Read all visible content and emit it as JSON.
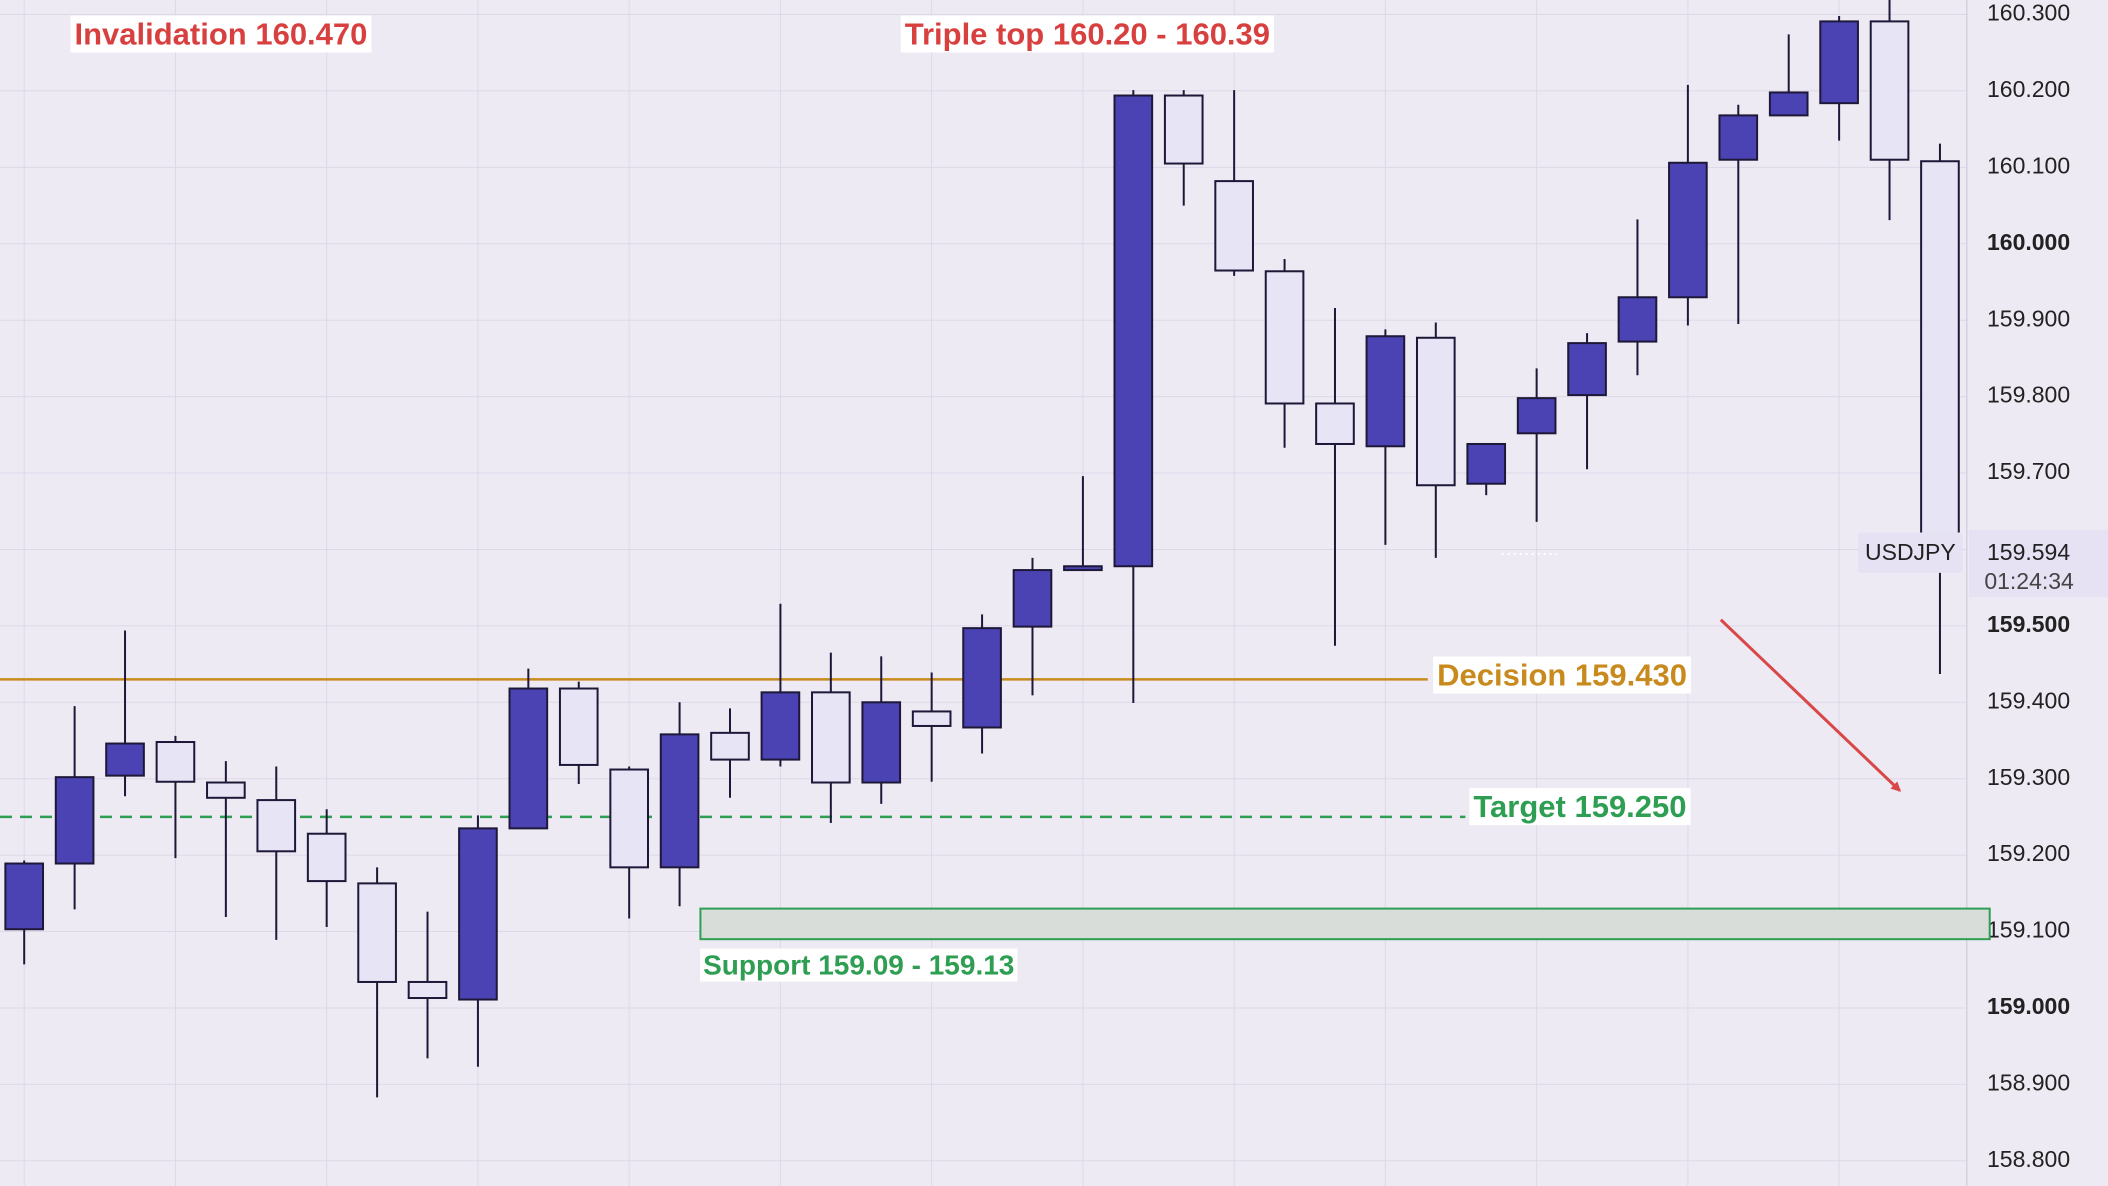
{
  "chart_data": {
    "type": "candlestick",
    "invalidation_text": "Invalidation 160.470",
    "triple_top_text": "Triple top 160.20 - 160.39",
    "open": [
      159.103,
      159.189,
      159.304,
      159.348,
      159.295,
      159.272,
      159.228,
      159.163,
      159.034,
      159.011,
      159.235,
      159.418,
      159.312,
      159.184,
      159.36,
      159.325,
      159.413,
      159.295,
      159.388,
      159.367,
      159.499,
      159.573,
      159.578,
      160.194,
      160.082,
      159.964,
      159.791,
      159.735,
      159.877,
      159.686,
      159.752,
      159.802,
      159.872,
      159.93,
      160.11,
      160.168,
      160.184,
      160.291,
      160.108
    ],
    "high": [
      159.193,
      159.395,
      159.494,
      159.356,
      159.323,
      159.316,
      159.26,
      159.184,
      159.126,
      159.252,
      159.444,
      159.427,
      159.316,
      159.4,
      159.392,
      159.529,
      159.465,
      159.46,
      159.439,
      159.515,
      159.589,
      159.696,
      160.201,
      160.201,
      160.201,
      159.98,
      159.916,
      159.888,
      159.897,
      159.738,
      159.837,
      159.883,
      160.032,
      160.208,
      160.182,
      160.274,
      160.298,
      160.319,
      160.131
    ],
    "low": [
      159.057,
      159.129,
      159.277,
      159.196,
      159.119,
      159.089,
      159.106,
      158.883,
      158.934,
      158.923,
      159.235,
      159.293,
      159.117,
      159.133,
      159.275,
      159.316,
      159.242,
      159.267,
      159.296,
      159.333,
      159.409,
      159.573,
      159.399,
      160.05,
      159.958,
      159.733,
      159.474,
      159.606,
      159.589,
      159.671,
      159.636,
      159.705,
      159.828,
      159.893,
      159.895,
      160.168,
      160.135,
      160.031,
      159.437
    ],
    "close": [
      159.189,
      159.302,
      159.346,
      159.296,
      159.275,
      159.205,
      159.166,
      159.034,
      159.013,
      159.235,
      159.418,
      159.318,
      159.184,
      159.358,
      159.325,
      159.413,
      159.295,
      159.4,
      159.369,
      159.497,
      159.573,
      159.578,
      160.194,
      160.105,
      159.965,
      159.791,
      159.738,
      159.879,
      159.684,
      159.738,
      159.798,
      159.87,
      159.93,
      160.106,
      160.168,
      160.198,
      160.291,
      160.11,
      159.594
    ],
    "up_color": "#4b43b3",
    "down_color": "#e7e5f5",
    "ylim": [
      158.767,
      160.319
    ],
    "yticks": [
      {
        "value": 158.8,
        "label": "158.800"
      },
      {
        "value": 158.9,
        "label": "158.900"
      },
      {
        "value": 159.0,
        "label": "159.000"
      },
      {
        "value": 159.1,
        "label": "159.100"
      },
      {
        "value": 159.2,
        "label": "159.200"
      },
      {
        "value": 159.3,
        "label": "159.300"
      },
      {
        "value": 159.4,
        "label": "159.400"
      },
      {
        "value": 159.5,
        "label": "159.500"
      },
      {
        "value": 159.6,
        "label": "159.600"
      },
      {
        "value": 159.7,
        "label": "159.700"
      },
      {
        "value": 159.8,
        "label": "159.800"
      },
      {
        "value": 159.9,
        "label": "159.900"
      },
      {
        "value": 160.0,
        "label": "160.000"
      },
      {
        "value": 160.1,
        "label": "160.100"
      },
      {
        "value": 160.2,
        "label": "160.200"
      },
      {
        "value": 160.3,
        "label": "160.300"
      }
    ],
    "grid": true,
    "decision": {
      "label": "Decision 159.430",
      "value": 159.43,
      "color": "#c88a1c"
    },
    "target": {
      "label": "Target 159.250",
      "value": 159.25,
      "color": "#2e9e52"
    },
    "support": {
      "label": "Support 159.09 - 159.13",
      "low": 159.09,
      "high": 159.13,
      "color": "#2e9e52"
    },
    "current_price": {
      "symbol": "USDJPY",
      "value": 159.594,
      "label": "159.594",
      "countdown": "01:24:34"
    }
  }
}
